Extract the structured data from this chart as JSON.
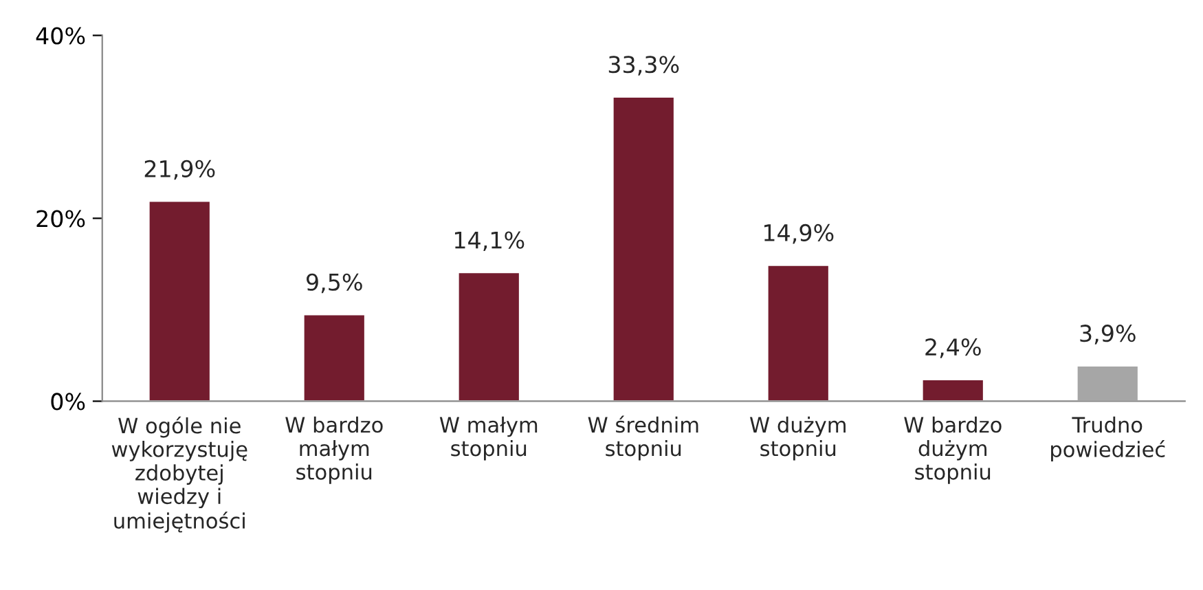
{
  "chart_data": {
    "type": "bar",
    "categories": [
      "W ogóle nie\nwykorzystuję\nzdobytej\nwiedzy i\numiejętności",
      "W bardzo\nmałym\nstopniu",
      "W małym\nstopniu",
      "W średnim\nstopniu",
      "W dużym\nstopniu",
      "W bardzo\ndużym\nstopniu",
      "Trudno\npowiedzieć"
    ],
    "values": [
      21.9,
      9.5,
      14.1,
      33.3,
      14.9,
      2.4,
      3.9
    ],
    "colors": [
      "#731c2e",
      "#731c2e",
      "#731c2e",
      "#731c2e",
      "#731c2e",
      "#731c2e",
      "#a6a6a6"
    ],
    "value_labels": [
      "21,9%",
      "9,5%",
      "14,1%",
      "33,3%",
      "14,9%",
      "2,4%",
      "3,9%"
    ],
    "ylim": [
      0,
      40
    ],
    "yticks": [
      {
        "value": 0,
        "label": "0%"
      },
      {
        "value": 20,
        "label": "20%"
      },
      {
        "value": 40,
        "label": "40%"
      }
    ],
    "grid": false,
    "legend": false
  }
}
